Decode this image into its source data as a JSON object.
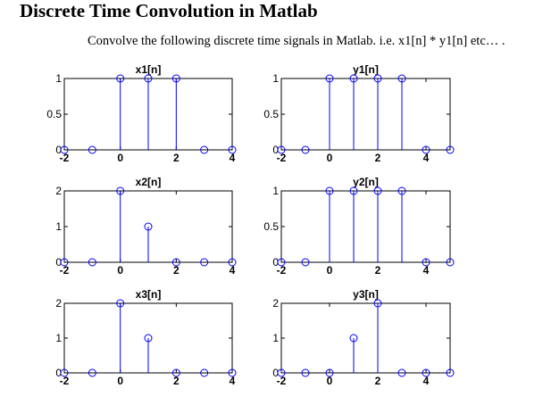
{
  "page": {
    "title": "Discrete Time Convolution in Matlab",
    "instruction": "Convolve the following discrete time signals in Matlab. i.e. x1[n] * y1[n] etc… ."
  },
  "colors": {
    "stem": "#0000ff",
    "axes": "#000000",
    "background": "#ffffff"
  },
  "chart_data": [
    {
      "type": "stem",
      "title": "x1[n]",
      "xlim": [
        -2,
        4
      ],
      "ylim": [
        0,
        1
      ],
      "xticks": [
        "-2",
        "0",
        "2",
        "4"
      ],
      "yticks": [
        "0",
        "0.5",
        "1"
      ],
      "x": [
        -2,
        -1,
        0,
        1,
        2,
        3,
        4
      ],
      "values": [
        0,
        0,
        1,
        1,
        1,
        0,
        0
      ]
    },
    {
      "type": "stem",
      "title": "y1[n]",
      "xlim": [
        -2,
        5
      ],
      "ylim": [
        0,
        1
      ],
      "xticks": [
        "-2",
        "0",
        "2",
        "4"
      ],
      "yticks": [
        "0",
        "0.5",
        "1"
      ],
      "x": [
        -2,
        -1,
        0,
        1,
        2,
        3,
        4,
        5
      ],
      "values": [
        0,
        0,
        1,
        1,
        1,
        1,
        0,
        0
      ]
    },
    {
      "type": "stem",
      "title": "x2[n]",
      "xlim": [
        -2,
        4
      ],
      "ylim": [
        0,
        2
      ],
      "xticks": [
        "-2",
        "0",
        "2",
        "4"
      ],
      "yticks": [
        "0",
        "1",
        "2"
      ],
      "x": [
        -2,
        -1,
        0,
        1,
        2,
        3,
        4
      ],
      "values": [
        0,
        0,
        2,
        1,
        0,
        0,
        0
      ]
    },
    {
      "type": "stem",
      "title": "y2[n]",
      "xlim": [
        -2,
        5
      ],
      "ylim": [
        0,
        1
      ],
      "xticks": [
        "-2",
        "0",
        "2",
        "4"
      ],
      "yticks": [
        "0",
        "0.5",
        "1"
      ],
      "x": [
        -2,
        -1,
        0,
        1,
        2,
        3,
        4,
        5
      ],
      "values": [
        0,
        0,
        1,
        1,
        1,
        1,
        0,
        0
      ]
    },
    {
      "type": "stem",
      "title": "x3[n]",
      "xlim": [
        -2,
        4
      ],
      "ylim": [
        0,
        2
      ],
      "xticks": [
        "-2",
        "0",
        "2",
        "4"
      ],
      "yticks": [
        "0",
        "1",
        "2"
      ],
      "x": [
        -2,
        -1,
        0,
        1,
        2,
        3,
        4
      ],
      "values": [
        0,
        0,
        2,
        1,
        0,
        0,
        0
      ]
    },
    {
      "type": "stem",
      "title": "y3[n]",
      "xlim": [
        -2,
        5
      ],
      "ylim": [
        0,
        2
      ],
      "xticks": [
        "-2",
        "0",
        "2",
        "4"
      ],
      "yticks": [
        "0",
        "1",
        "2"
      ],
      "x": [
        -2,
        -1,
        0,
        1,
        2,
        3,
        4,
        5
      ],
      "values": [
        0,
        0,
        0,
        1,
        2,
        0,
        0,
        0
      ]
    }
  ]
}
